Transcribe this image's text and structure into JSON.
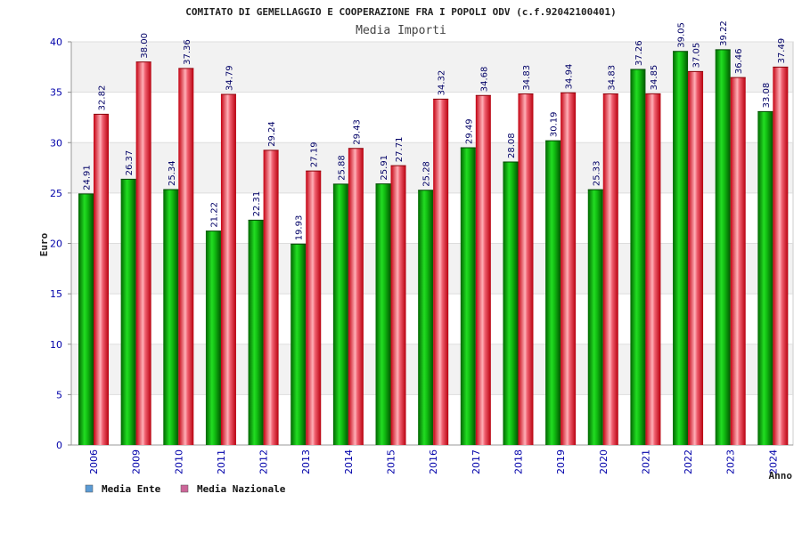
{
  "chart_data": {
    "type": "bar",
    "title": "COMITATO DI GEMELLAGGIO E COOPERAZIONE FRA I POPOLI ODV (c.f.92042100401)",
    "subtitle": "Media Importi",
    "xlabel": "Anno",
    "ylabel": "Euro",
    "ylim": [
      0,
      40
    ],
    "yticks": [
      0,
      5,
      10,
      15,
      20,
      25,
      30,
      35,
      40
    ],
    "grid": true,
    "legend_position": "bottom-left",
    "categories": [
      "2006",
      "2009",
      "2010",
      "2011",
      "2012",
      "2013",
      "2014",
      "2015",
      "2016",
      "2017",
      "2018",
      "2019",
      "2020",
      "2021",
      "2022",
      "2023",
      "2024"
    ],
    "series": [
      {
        "name": "Media Ente",
        "legend_color": "#5b9bd5",
        "color": "#00aa00",
        "values": [
          24.91,
          26.37,
          25.34,
          21.22,
          22.31,
          19.93,
          25.88,
          25.91,
          25.28,
          29.49,
          28.08,
          30.19,
          25.33,
          37.26,
          39.05,
          39.22,
          33.08
        ],
        "labels": [
          "24.91",
          "26.37",
          "25.34",
          "21.22",
          "22.31",
          "19.93",
          "25.88",
          "25.91",
          "25.28",
          "29.49",
          "28.08",
          "30.19",
          "25.33",
          "37.26",
          "39.05",
          "39.22",
          "33.08"
        ]
      },
      {
        "name": "Media Nazionale",
        "legend_color": "#cc6699",
        "color": "#e8202a",
        "values": [
          32.82,
          38.0,
          37.36,
          34.79,
          29.24,
          27.19,
          29.43,
          27.71,
          34.32,
          34.68,
          34.83,
          34.94,
          34.83,
          34.85,
          37.05,
          36.46,
          37.49
        ],
        "labels": [
          "32.82",
          "38.00",
          "37.36",
          "34.79",
          "29.24",
          "27.19",
          "29.43",
          "27.71",
          "34.32",
          "34.68",
          "34.83",
          "34.94",
          "34.83",
          "34.85",
          "37.05",
          "36.46",
          "37.49"
        ]
      }
    ]
  }
}
